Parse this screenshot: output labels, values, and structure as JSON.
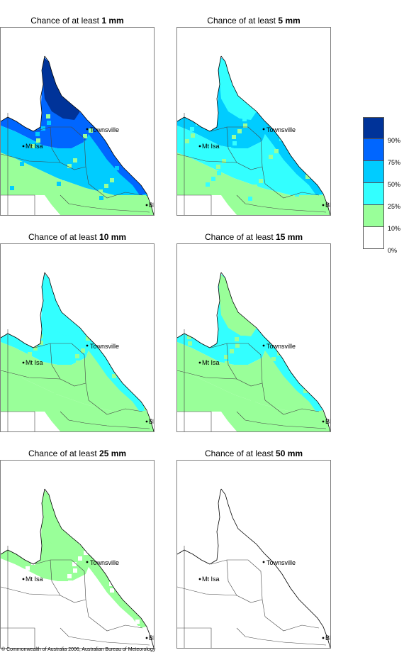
{
  "panels": [
    {
      "title_prefix": "Chance of at least ",
      "amount": "1 mm",
      "level": 0
    },
    {
      "title_prefix": "Chance of at least ",
      "amount": "5 mm",
      "level": 1
    },
    {
      "title_prefix": "Chance of at least ",
      "amount": "10 mm",
      "level": 2
    },
    {
      "title_prefix": "Chance of at least ",
      "amount": "15 mm",
      "level": 3
    },
    {
      "title_prefix": "Chance of at least ",
      "amount": "25 mm",
      "level": 4
    },
    {
      "title_prefix": "Chance of at least ",
      "amount": "50 mm",
      "level": 5
    }
  ],
  "places": {
    "townsville": "Townsville",
    "mt_isa": "Mt Isa",
    "brisbane": "BRIS"
  },
  "legend": {
    "colors": [
      "#003399",
      "#0066ff",
      "#00ccff",
      "#33ffff",
      "#99ff99",
      "#ffffff"
    ],
    "labels": [
      "90%",
      "75%",
      "50%",
      "25%",
      "10%",
      "0%"
    ]
  },
  "copyright": "© Commonwealth of Australia 2006, Australian Bureau of Meteorology"
}
